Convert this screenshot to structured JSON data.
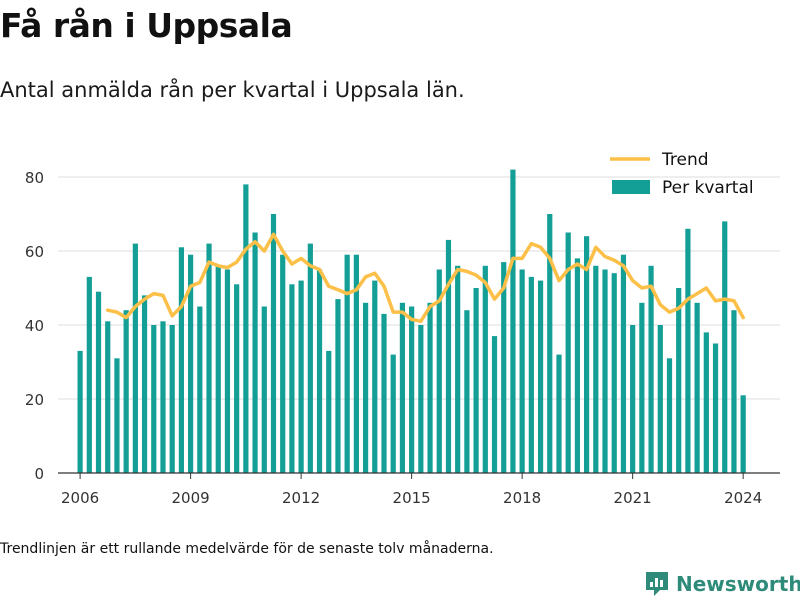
{
  "title": "Få rån i Uppsala",
  "subtitle": "Antal anmälda rån per kvartal i Uppsala län.",
  "footnote": "Trendlinjen är ett rullande medelvärde för de senaste tolv månaderna.",
  "brand": "Newsworthy",
  "colors": {
    "bar": "#139e96",
    "trend": "#fcbf47",
    "grid": "#dddddd",
    "axis": "#333333",
    "brand": "#2e8b7a"
  },
  "chart_data": {
    "type": "bar",
    "title": "",
    "xlabel": "",
    "ylabel": "",
    "ylim": [
      0,
      90
    ],
    "xlim": [
      2005.4,
      2025.0
    ],
    "yticks": [
      0,
      20,
      40,
      60,
      80
    ],
    "xticks": [
      2006,
      2009,
      2012,
      2015,
      2018,
      2021,
      2024
    ],
    "grid": true,
    "legend_position": "top-right",
    "x": [
      2006.0,
      2006.25,
      2006.5,
      2006.75,
      2007.0,
      2007.25,
      2007.5,
      2007.75,
      2008.0,
      2008.25,
      2008.5,
      2008.75,
      2009.0,
      2009.25,
      2009.5,
      2009.75,
      2010.0,
      2010.25,
      2010.5,
      2010.75,
      2011.0,
      2011.25,
      2011.5,
      2011.75,
      2012.0,
      2012.25,
      2012.5,
      2012.75,
      2013.0,
      2013.25,
      2013.5,
      2013.75,
      2014.0,
      2014.25,
      2014.5,
      2014.75,
      2015.0,
      2015.25,
      2015.5,
      2015.75,
      2016.0,
      2016.25,
      2016.5,
      2016.75,
      2017.0,
      2017.25,
      2017.5,
      2017.75,
      2018.0,
      2018.25,
      2018.5,
      2018.75,
      2019.0,
      2019.25,
      2019.5,
      2019.75,
      2020.0,
      2020.25,
      2020.5,
      2020.75,
      2021.0,
      2021.25,
      2021.5,
      2021.75,
      2022.0,
      2022.25,
      2022.5,
      2022.75,
      2023.0,
      2023.25,
      2023.5,
      2023.75,
      2024.0
    ],
    "series": [
      {
        "name": "Per kvartal",
        "type": "bar",
        "color": "#139e96",
        "values": [
          33,
          53,
          49,
          41,
          31,
          44,
          62,
          48,
          40,
          41,
          40,
          61,
          59,
          45,
          62,
          56,
          55,
          51,
          78,
          65,
          45,
          70,
          59,
          51,
          52,
          62,
          55,
          33,
          47,
          59,
          59,
          46,
          52,
          43,
          32,
          46,
          45,
          40,
          46,
          55,
          63,
          56,
          44,
          50,
          56,
          37,
          57,
          82,
          55,
          53,
          52,
          70,
          32,
          65,
          58,
          64,
          56,
          55,
          54,
          59,
          40,
          46,
          56,
          40,
          31,
          50,
          66,
          46,
          38,
          35,
          68,
          44,
          21
        ]
      },
      {
        "name": "Trend",
        "type": "line",
        "color": "#fcbf47",
        "x": [
          2006.75,
          2007.0,
          2007.25,
          2007.5,
          2007.75,
          2008.0,
          2008.25,
          2008.5,
          2008.75,
          2009.0,
          2009.25,
          2009.5,
          2009.75,
          2010.0,
          2010.25,
          2010.5,
          2010.75,
          2011.0,
          2011.25,
          2011.5,
          2011.75,
          2012.0,
          2012.25,
          2012.5,
          2012.75,
          2013.0,
          2013.25,
          2013.5,
          2013.75,
          2014.0,
          2014.25,
          2014.5,
          2014.75,
          2015.0,
          2015.25,
          2015.5,
          2015.75,
          2016.0,
          2016.25,
          2016.5,
          2016.75,
          2017.0,
          2017.25,
          2017.5,
          2017.75,
          2018.0,
          2018.25,
          2018.5,
          2018.75,
          2019.0,
          2019.25,
          2019.5,
          2019.75,
          2020.0,
          2020.25,
          2020.5,
          2020.75,
          2021.0,
          2021.25,
          2021.5,
          2021.75,
          2022.0,
          2022.25,
          2022.5,
          2022.75,
          2023.0,
          2023.25,
          2023.5,
          2023.75,
          2024.0
        ],
        "values": [
          44,
          43.5,
          42,
          45,
          47,
          48.5,
          48,
          42.5,
          45,
          50.5,
          51.5,
          57,
          56,
          55.5,
          57,
          60.5,
          62.5,
          60,
          64.5,
          60,
          56.5,
          58,
          56,
          55,
          50.5,
          49.5,
          48.5,
          49.5,
          53,
          54,
          50.5,
          43.5,
          43.5,
          41.5,
          41,
          45,
          46.5,
          51,
          55,
          54.5,
          53.5,
          51.5,
          47,
          50,
          58,
          58,
          62,
          61,
          58,
          52,
          55,
          56.5,
          55,
          61,
          58.5,
          57.5,
          56,
          52,
          50,
          50.5,
          45.5,
          43.5,
          44.5,
          47,
          48.5,
          50,
          46.5,
          47,
          46.5,
          42
        ]
      }
    ]
  }
}
